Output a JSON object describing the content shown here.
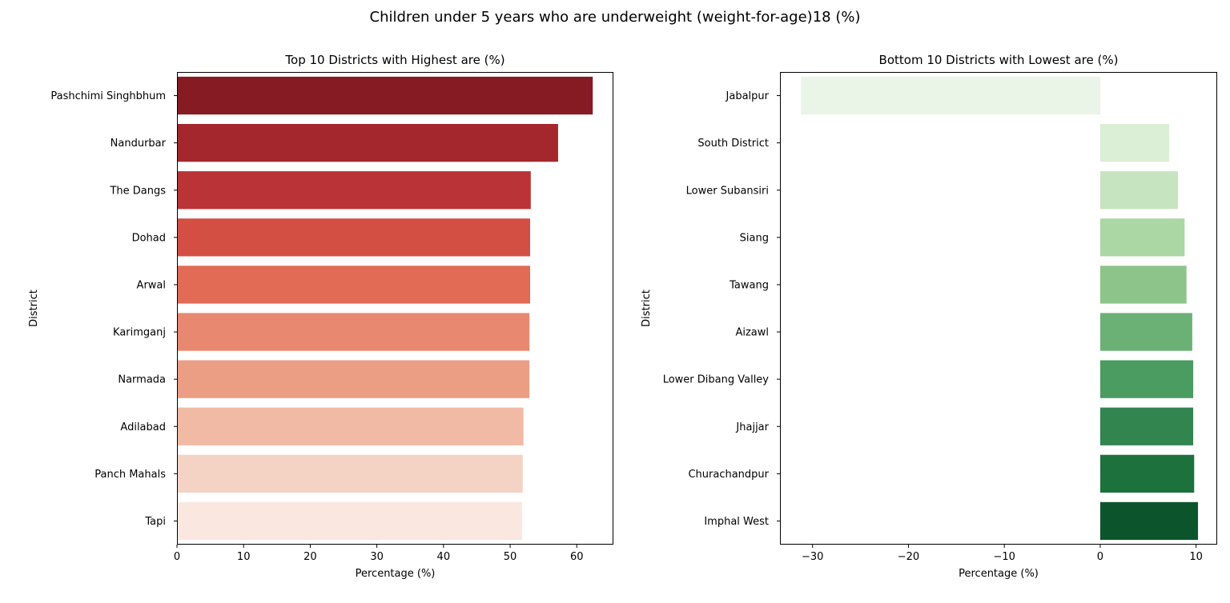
{
  "figure_title": "Children under 5 years who are underweight (weight-for-age)18 (%)",
  "chart_data": [
    {
      "type": "bar",
      "orientation": "horizontal",
      "title": "Top 10 Districts with Highest are (%)",
      "xlabel": "Percentage (%)",
      "ylabel": "District",
      "xlim": [
        0,
        65.5
      ],
      "xticks": [
        0,
        10,
        20,
        30,
        40,
        50,
        60
      ],
      "xtick_labels": [
        "0",
        "10",
        "20",
        "30",
        "40",
        "50",
        "60"
      ],
      "categories": [
        "Pashchimi Singhbhum",
        "Nandurbar",
        "The Dangs",
        "Dohad",
        "Arwal",
        "Karimganj",
        "Narmada",
        "Adilabad",
        "Panch Mahals",
        "Tapi"
      ],
      "values": [
        62.4,
        57.2,
        53.1,
        53.0,
        53.0,
        52.9,
        52.9,
        52.0,
        51.9,
        51.8
      ],
      "colors": [
        "#861b24",
        "#a3272d",
        "#ba3336",
        "#d34f44",
        "#e26b56",
        "#e98870",
        "#eb9e84",
        "#f1baa4",
        "#f4d3c5",
        "#f9e7e0"
      ],
      "grid": false,
      "legend": "none"
    },
    {
      "type": "bar",
      "orientation": "horizontal",
      "title": "Bottom 10 Districts with Lowest are (%)",
      "xlabel": "Percentage (%)",
      "ylabel": "District",
      "xlim": [
        -33.4,
        12.2
      ],
      "xticks": [
        -30,
        -20,
        -10,
        0,
        10
      ],
      "xtick_labels": [
        "−30",
        "−20",
        "−10",
        "0",
        "10"
      ],
      "categories": [
        "Jabalpur",
        "South District",
        "Lower Subansiri",
        "Siang",
        "Tawang",
        "Aizawl",
        "Lower Dibang Valley",
        "Jhajjar",
        "Churachandpur",
        "Imphal West"
      ],
      "values": [
        -31.2,
        7.2,
        8.1,
        8.8,
        9.0,
        9.6,
        9.7,
        9.7,
        9.8,
        10.2
      ],
      "colors": [
        "#eaf4e7",
        "#dbeed6",
        "#c6e4bf",
        "#aad7a3",
        "#8dc489",
        "#6bb176",
        "#4b9c61",
        "#32854f",
        "#1d713d",
        "#0c552c"
      ],
      "grid": false,
      "legend": "none"
    }
  ]
}
